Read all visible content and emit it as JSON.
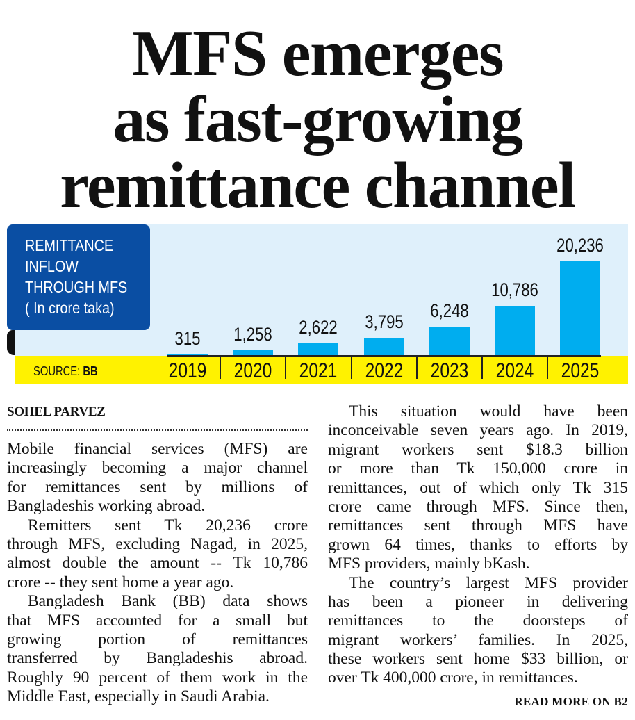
{
  "headline": [
    "MFS emerges",
    "as fast-growing",
    "remittance channel"
  ],
  "chart_data": {
    "type": "bar",
    "title": "REMITTANCE INFLOW THROUGH MFS",
    "title_lines": [
      "REMITTANCE",
      "INFLOW",
      "THROUGH MFS"
    ],
    "unit": "( In crore taka)",
    "categories": [
      "2019",
      "2020",
      "2021",
      "2022",
      "2023",
      "2024",
      "2025"
    ],
    "values": [
      315,
      1258,
      2622,
      3795,
      6248,
      10786,
      20236
    ],
    "value_labels": [
      "315",
      "1,258",
      "2,622",
      "3,795",
      "6,248",
      "10,786",
      "20,236"
    ],
    "source_label": "SOURCE:",
    "source": "BB",
    "ylim": [
      0,
      20236
    ],
    "grid": false,
    "bar_color": "#00adef",
    "band_color": "#fff200",
    "title_box_color": "#0a4ea3"
  },
  "byline": "SOHEL PARVEZ",
  "columns": [
    [
      [
        "Mobile financial services (MFS) are",
        "increasingly becoming a major channel",
        "for remittances sent by millions of",
        "Bangladeshis working abroad."
      ],
      [
        "Remitters sent Tk 20,236 crore",
        "through MFS, excluding Nagad, in 2025,",
        "almost double the amount -- Tk 10,786",
        "crore -- they sent home a year ago."
      ],
      [
        "Bangladesh Bank (BB) data shows",
        "that MFS accounted for a small but",
        "growing portion of remittances",
        "transferred by Bangladeshis abroad.",
        "Roughly 90 percent of them work in the",
        "Middle East, especially in Saudi Arabia."
      ]
    ],
    [
      [
        "This situation would have been",
        "inconceivable seven years ago. In 2019,",
        "migrant workers sent $18.3 billion",
        "or more than Tk 150,000 crore in",
        "remittances, out of which only Tk 315",
        "crore came through MFS. Since then,",
        "remittances sent through MFS have",
        "grown 64 times, thanks to efforts by",
        "MFS providers, mainly bKash."
      ],
      [
        "The country’s largest MFS provider",
        "has been a pioneer in delivering",
        "remittances to the doorsteps of",
        "migrant workers’ families. In 2025,",
        "these workers sent home $33 billion, or",
        "over Tk 400,000 crore, in remittances."
      ]
    ]
  ],
  "read_more": "READ MORE ON B2"
}
